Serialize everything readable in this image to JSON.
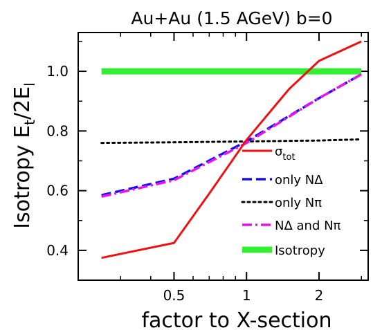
{
  "chart_data": {
    "type": "line",
    "title": "Au+Au (1.5 AGeV) b=0",
    "xlabel": "factor to X-section",
    "ylabel": {
      "main": "Isotropy  E",
      "sub1": "t",
      "mid": "/2E",
      "sub2": "l"
    },
    "x_scale": "log",
    "xlim": [
      0.2,
      3.2
    ],
    "ylim": [
      0.3,
      1.13
    ],
    "x_ticks": [
      {
        "value": 0.5,
        "label": "0.5"
      },
      {
        "value": 1,
        "label": "1"
      },
      {
        "value": 2,
        "label": "2"
      }
    ],
    "y_ticks": [
      {
        "value": 0.4,
        "label": "0.4"
      },
      {
        "value": 0.6,
        "label": "0.6"
      },
      {
        "value": 0.8,
        "label": "0.8"
      },
      {
        "value": 1.0,
        "label": "1.0"
      }
    ],
    "x_minor_ticks": [
      0.3,
      0.4,
      0.6,
      0.7,
      0.8,
      0.9,
      3
    ],
    "y_minor_ticks": [
      0.5,
      0.7,
      0.9,
      1.1
    ],
    "legend_position": "right-middle",
    "series": [
      {
        "key": "sigma",
        "name": "σ",
        "name_sub": "tot",
        "color": "#ee1111",
        "style": "solid",
        "width": 3,
        "x": [
          0.25,
          0.5,
          0.7,
          1.0,
          1.5,
          2.0,
          3.0
        ],
        "y": [
          0.375,
          0.425,
          0.59,
          0.77,
          0.94,
          1.035,
          1.1
        ]
      },
      {
        "key": "nd",
        "name": "only NΔ",
        "color": "#1111ee",
        "style": "dashed",
        "width": 3.5,
        "x": [
          0.25,
          0.5,
          1.0,
          2.0,
          3.0
        ],
        "y": [
          0.585,
          0.64,
          0.765,
          0.91,
          0.99
        ]
      },
      {
        "key": "npi",
        "name": "only Nπ",
        "color": "#000000",
        "style": "dotted",
        "width": 3,
        "x": [
          0.25,
          0.5,
          1.0,
          2.0,
          3.0
        ],
        "y": [
          0.76,
          0.762,
          0.765,
          0.768,
          0.772
        ]
      },
      {
        "key": "both",
        "name": "NΔ  and Nπ",
        "color": "#ee11ee",
        "style": "dashdot",
        "width": 3.5,
        "x": [
          0.25,
          0.5,
          1.0,
          2.0,
          3.0
        ],
        "y": [
          0.58,
          0.635,
          0.76,
          0.91,
          0.99
        ]
      },
      {
        "key": "iso",
        "name": "Isotropy",
        "color": "#33ee33",
        "style": "solid",
        "width": 9,
        "x": [
          0.25,
          3.0
        ],
        "y": [
          1.0,
          1.0
        ]
      }
    ]
  }
}
